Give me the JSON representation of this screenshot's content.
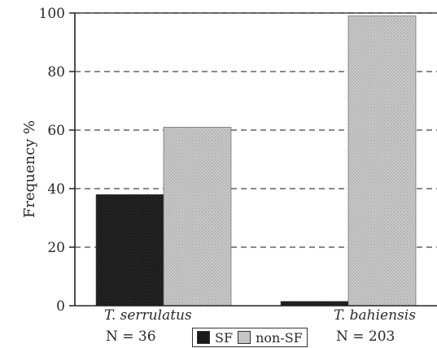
{
  "chart_data": {
    "type": "bar",
    "title": "",
    "xlabel": "",
    "ylabel": "Frequency %",
    "ylim": [
      0,
      100
    ],
    "yticks": [
      0,
      20,
      40,
      60,
      80,
      100
    ],
    "grid": "dashed horizontal",
    "categories": [
      "T. serrulatus",
      "T. bahiensis"
    ],
    "sample_sizes": [
      "N = 36",
      "N = 203"
    ],
    "series": [
      {
        "name": "SF",
        "values": [
          38,
          1.5
        ],
        "color": "#1a1a1a"
      },
      {
        "name": "non-SF",
        "values": [
          61,
          99
        ],
        "color": "#bdbdbd"
      }
    ],
    "legend": "bottom-center"
  }
}
